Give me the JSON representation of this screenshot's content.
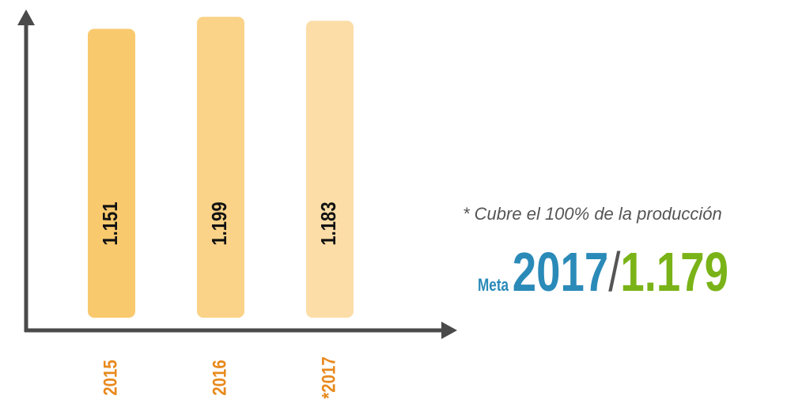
{
  "chart_data": {
    "type": "bar",
    "categories": [
      "2015",
      "2016",
      "*2017"
    ],
    "values": [
      1151,
      1199,
      1183
    ],
    "value_labels": [
      "1.151",
      "1.199",
      "1.183"
    ],
    "colors": [
      "#f9c96e",
      "#fad388",
      "#fcdda7"
    ],
    "ylim": [
      0,
      1250
    ],
    "annotations": {
      "note": "* Cubre el 100% de la producción",
      "meta_label": "Meta",
      "meta_year": "2017",
      "meta_separator": "/",
      "meta_value": "1.179"
    }
  }
}
